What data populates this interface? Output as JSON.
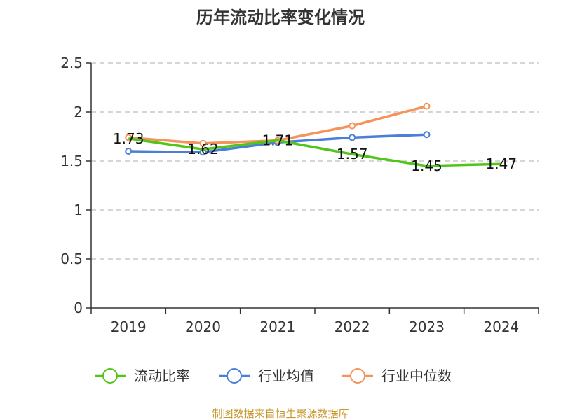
{
  "chart_data": {
    "type": "line",
    "title": "历年流动比率变化情况",
    "categories": [
      "2019",
      "2020",
      "2021",
      "2022",
      "2023",
      "2024"
    ],
    "ylim": [
      0,
      2.5
    ],
    "yticks": [
      "0",
      "0.5",
      "1",
      "1.5",
      "2",
      "2.5"
    ],
    "grid": true,
    "legend_position": "bottom",
    "series": [
      {
        "name": "流动比率",
        "color": "#52c41a",
        "values": [
          1.73,
          1.62,
          1.71,
          1.57,
          1.45,
          1.47
        ],
        "labels": [
          "1.73",
          "1.62",
          "1.71",
          "1.57",
          "1.45",
          "1.47"
        ]
      },
      {
        "name": "行业均值",
        "color": "#4a7fd8",
        "values": [
          1.6,
          1.59,
          1.69,
          1.74,
          1.77,
          null
        ]
      },
      {
        "name": "行业中位数",
        "color": "#f5935a",
        "values": [
          1.74,
          1.68,
          1.71,
          1.86,
          2.06,
          null
        ]
      }
    ],
    "source": "制图数据来自恒生聚源数据库"
  }
}
